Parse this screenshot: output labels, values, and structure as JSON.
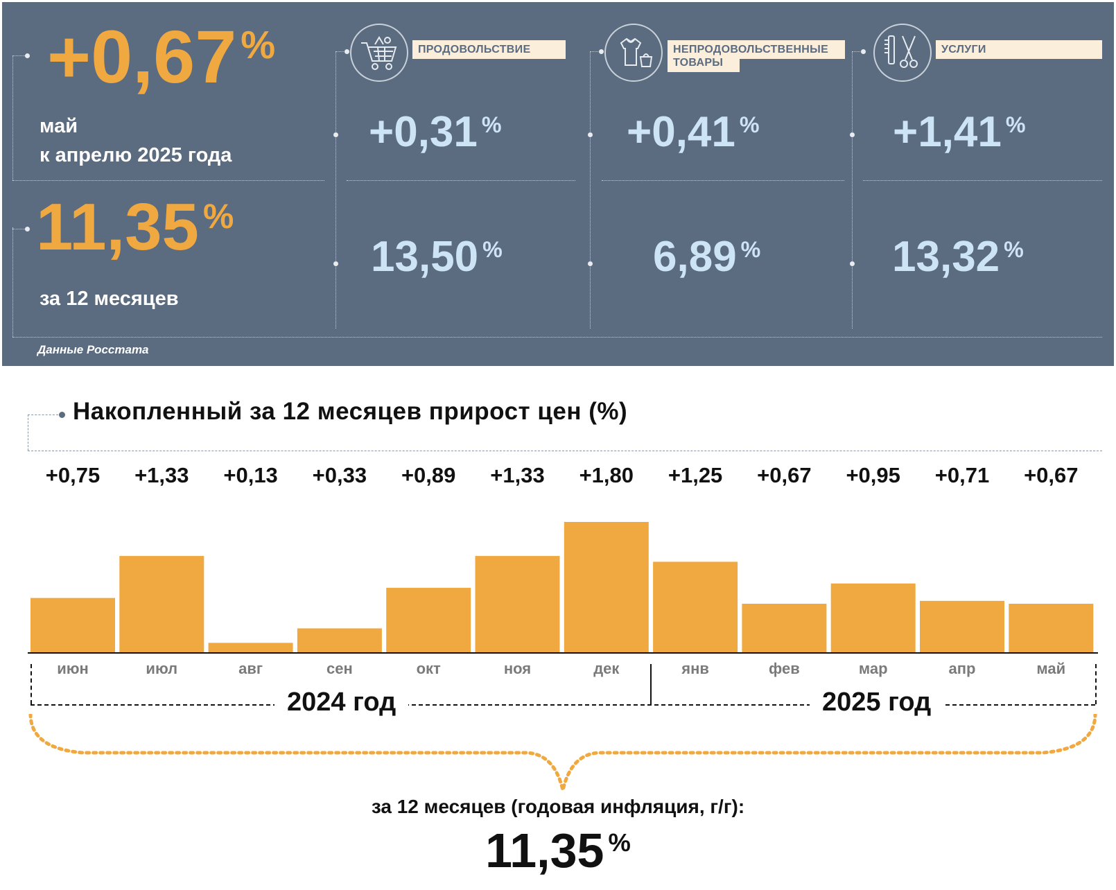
{
  "header": {
    "month_change": {
      "value": "+0,67",
      "unit": "%",
      "label_line1": "май",
      "label_line2": "к апрелю 2025 года"
    },
    "annual_change": {
      "value": "11,35",
      "unit": "%",
      "label": "за 12 месяцев"
    },
    "source": "Данные Росстата",
    "categories": [
      {
        "name": "ПРОДОВОЛЬСТВИЕ",
        "icon": "shopping-cart-icon",
        "month": "+0,31",
        "annual": "13,50",
        "unit": "%"
      },
      {
        "name_line1": "НЕПРОДОВОЛЬСТВЕННЫЕ",
        "name_line2": "ТОВАРЫ",
        "icon": "clothing-icon",
        "month": "+0,41",
        "annual": "6,89",
        "unit": "%"
      },
      {
        "name": "УСЛУГИ",
        "icon": "comb-scissors-icon",
        "month": "+1,41",
        "annual": "13,32",
        "unit": "%"
      }
    ]
  },
  "chart_title": "Накопленный за 12 месяцев прирост цен (%)",
  "years": [
    "2024 год",
    "2025 год"
  ],
  "summary": {
    "caption": "за 12 месяцев (годовая инфляция, г/г):",
    "value": "11,35",
    "unit": "%"
  },
  "colors": {
    "panel": "#5b6b80",
    "accent": "#f0a940",
    "light_blue": "#cde4f5",
    "tag_bg": "#fbeedb"
  },
  "chart_data": {
    "type": "bar",
    "title": "Накопленный за 12 месяцев прирост цен (%)",
    "categories": [
      "июн",
      "июл",
      "авг",
      "сен",
      "окт",
      "ноя",
      "дек",
      "янв",
      "фев",
      "мар",
      "апр",
      "май"
    ],
    "values": [
      0.75,
      1.33,
      0.13,
      0.33,
      0.89,
      1.33,
      1.8,
      1.25,
      0.67,
      0.95,
      0.71,
      0.67
    ],
    "value_labels": [
      "+0,75",
      "+1,33",
      "+0,13",
      "+0,33",
      "+0,89",
      "+1,33",
      "+1,80",
      "+1,25",
      "+0,67",
      "+0,95",
      "+0,71",
      "+0,67"
    ],
    "ylim": [
      0,
      1.8
    ],
    "grid": false,
    "bar_color": "#f0a940"
  }
}
